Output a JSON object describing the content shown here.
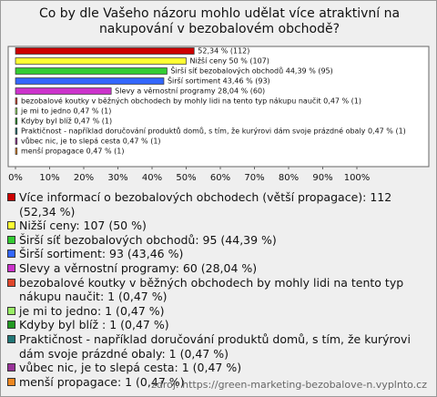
{
  "chart_data": {
    "type": "bar",
    "orientation": "horizontal",
    "title": "Co by dle Vašeho názoru mohlo udělat více atraktivní na nakupování v bezobalovém obchodě?",
    "categories": [
      "Více informací o bezobalových obchodech (větší propagace): 112 (52,34 %)",
      "Nižší ceny: 107 (50 %)",
      "Širší síť bezobalových obchodů: 95 (44,39 %)",
      "Širší sortiment: 93 (43,46 %)",
      "Slevy a věrnostní programy: 60 (28,04 %)",
      "bezobalové koutky v běžných obchodech by mohly lidi na tento typ nákupu naučit: 1 (0,47 %)",
      "je mi to jedno: 1 (0,47 %)",
      "Kdyby byl blíž : 1 (0,47 %)",
      "Praktičnost - například doručování produktů domů, s tím, že kurýrovi dám svoje prázdné obaly: 1 (0,47 %)",
      "vůbec nic, je to slepá cesta: 1 (0,47 %)",
      "menší propagace: 1 (0,47 %)"
    ],
    "values": [
      52.34,
      50,
      44.39,
      43.46,
      28.04,
      0.47,
      0.47,
      0.47,
      0.47,
      0.47,
      0.47
    ],
    "value_labels": [
      "52,34 % (112)",
      "Nižší ceny 50 % (107)",
      "Širší síť bezobalových obchodů 44,39 % (95)",
      "Širší sortiment 43,46 % (93)",
      "Slevy a věrnostní programy 28,04 % (60)",
      "bezobalové koutky v běžných obchodech by mohly lidi na tento typ nákupu naučit 0,47 % (1)",
      "je mi to jedno 0,47 % (1)",
      "Kdyby byl blíž  0,47 % (1)",
      "Praktičnost - například doručování produktů domů, s tím, že kurýrovi dám svoje prázdné obaly 0,47 % (1)",
      "vůbec nic, je to slepá cesta 0,47 % (1)",
      "menší propagace 0,47 % (1)"
    ],
    "colors": [
      "#cc0000",
      "#ffff33",
      "#33cc33",
      "#3366ff",
      "#cc33cc",
      "#e0462b",
      "#99ee66",
      "#229922",
      "#227777",
      "#993399",
      "#ee8822"
    ],
    "xlim": [
      0,
      100
    ],
    "xticks": [
      {
        "value": 0,
        "label": "0%"
      },
      {
        "value": 10,
        "label": "10%"
      },
      {
        "value": 20,
        "label": "20%"
      },
      {
        "value": 30,
        "label": "30%"
      },
      {
        "value": 40,
        "label": "40%"
      },
      {
        "value": 50,
        "label": "50%"
      },
      {
        "value": 60,
        "label": "60%"
      },
      {
        "value": 70,
        "label": "70%"
      },
      {
        "value": 80,
        "label": "80%"
      },
      {
        "value": 90,
        "label": "90%"
      },
      {
        "value": 100,
        "label": "100%"
      }
    ],
    "source": "zdroj: https://green-marketing-bezobalove-n.vyplnto.cz"
  }
}
